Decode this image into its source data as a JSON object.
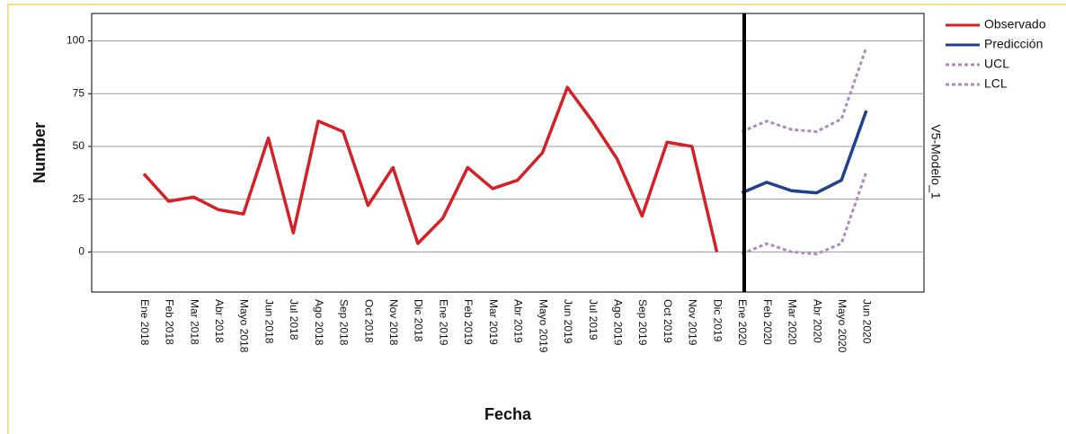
{
  "chart_data": {
    "type": "line",
    "y_label": "Number",
    "x_label": "Fecha",
    "side_label": "V5-Modelo_1",
    "categories": [
      "Ene 2018",
      "Feb 2018",
      "Mar 2018",
      "Abr 2018",
      "Mayo 2018",
      "Jun 2018",
      "Jul 2018",
      "Ago 2018",
      "Sep 2018",
      "Oct 2018",
      "Nov 2018",
      "Dic 2018",
      "Ene 2019",
      "Feb 2019",
      "Mar 2019",
      "Abr 2019",
      "Mayo 2019",
      "Jun 2019",
      "Jul 2019",
      "Ago 2019",
      "Sep 2019",
      "Oct 2019",
      "Nov 2019",
      "Dic 2019",
      "Ene 2020",
      "Feb 2020",
      "Mar 2020",
      "Abr 2020",
      "Mayo 2020",
      "Jun 2020"
    ],
    "series": [
      {
        "name": "Observado",
        "color": "#d42027",
        "dashed": false,
        "values": [
          37,
          24,
          26,
          20,
          18,
          54,
          9,
          62,
          57,
          22,
          40,
          4,
          16,
          40,
          30,
          34,
          47,
          78,
          62,
          44,
          17,
          52,
          50,
          0,
          null,
          null,
          null,
          null,
          null,
          null
        ]
      },
      {
        "name": "Predicción",
        "color": "#20418f",
        "dashed": false,
        "values": [
          null,
          null,
          null,
          null,
          null,
          null,
          null,
          null,
          null,
          null,
          null,
          null,
          null,
          null,
          null,
          null,
          null,
          null,
          null,
          null,
          null,
          null,
          null,
          null,
          28,
          33,
          29,
          28,
          34,
          67
        ]
      },
      {
        "name": "UCL",
        "color": "#a98bc7",
        "dashed": true,
        "values": [
          null,
          null,
          null,
          null,
          null,
          null,
          null,
          null,
          null,
          null,
          null,
          null,
          null,
          null,
          null,
          null,
          null,
          null,
          null,
          null,
          null,
          null,
          null,
          null,
          57,
          62,
          58,
          57,
          63,
          97
        ]
      },
      {
        "name": "LCL",
        "color": "#a98bc7",
        "dashed": true,
        "values": [
          null,
          null,
          null,
          null,
          null,
          null,
          null,
          null,
          null,
          null,
          null,
          null,
          null,
          null,
          null,
          null,
          null,
          null,
          null,
          null,
          null,
          null,
          null,
          null,
          -1,
          4,
          0,
          -1,
          4,
          38
        ]
      }
    ],
    "ylim": [
      -19,
      113
    ],
    "yticks": [
      0,
      25,
      50,
      75,
      100
    ],
    "grid": true,
    "legend": "top-right"
  }
}
